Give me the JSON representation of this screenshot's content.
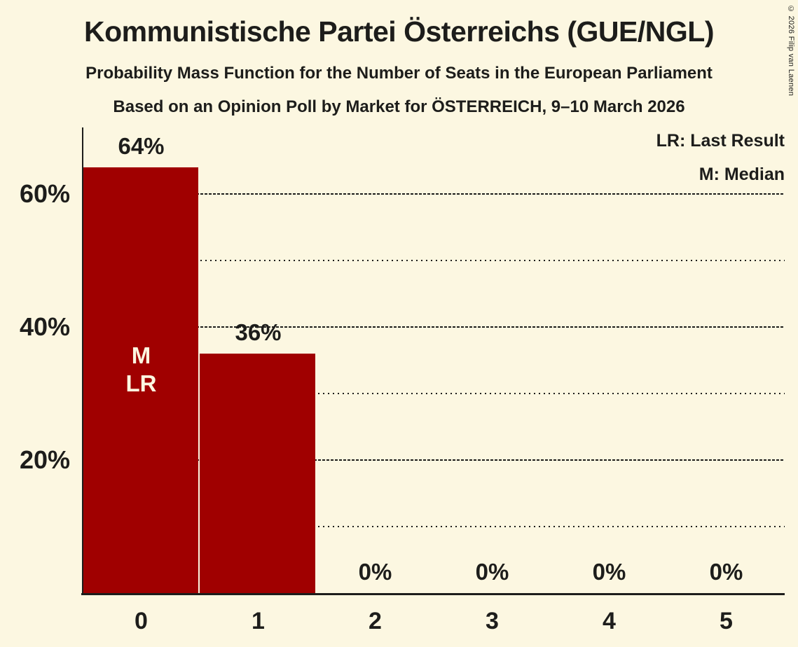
{
  "page": {
    "title": "Kommunistische Partei Österreichs (GUE/NGL)",
    "subtitle": "Probability Mass Function for the Number of Seats in the European Parliament",
    "poll_line": "Based on an Opinion Poll by Market for ÖSTERREICH, 9–10 March 2026",
    "copyright": "© 2026 Filip van Laenen"
  },
  "legend": {
    "lr": "LR: Last Result",
    "m": "M: Median"
  },
  "colors": {
    "background": "#FCF7E1",
    "bar": "#A00000",
    "text": "#1D1D1B",
    "axis": "#1D1D1B",
    "inside_bar_text": "#FCF7E1"
  },
  "chart_data": {
    "type": "bar",
    "title": "Probability Mass Function for the Number of Seats in the European Parliament",
    "xlabel": "",
    "ylabel": "",
    "categories": [
      "0",
      "1",
      "2",
      "3",
      "4",
      "5"
    ],
    "values": [
      64,
      36,
      0,
      0,
      0,
      0
    ],
    "bar_labels": [
      "64%",
      "36%",
      "0%",
      "0%",
      "0%",
      "0%"
    ],
    "ylim": [
      0,
      70
    ],
    "yticks": [
      {
        "value": 20,
        "label": "20%"
      },
      {
        "value": 40,
        "label": "40%"
      },
      {
        "value": 60,
        "label": "60%"
      }
    ],
    "major_gridlines": [
      20,
      40,
      60
    ],
    "minor_gridlines": [
      10,
      30,
      50
    ],
    "grid": "horizontal, major dashed + minor dotted",
    "legend_position": "top-right",
    "annotations": {
      "median_seat": 0,
      "last_result_seat": 0,
      "in_bar_labels": [
        "M",
        "LR"
      ]
    }
  }
}
